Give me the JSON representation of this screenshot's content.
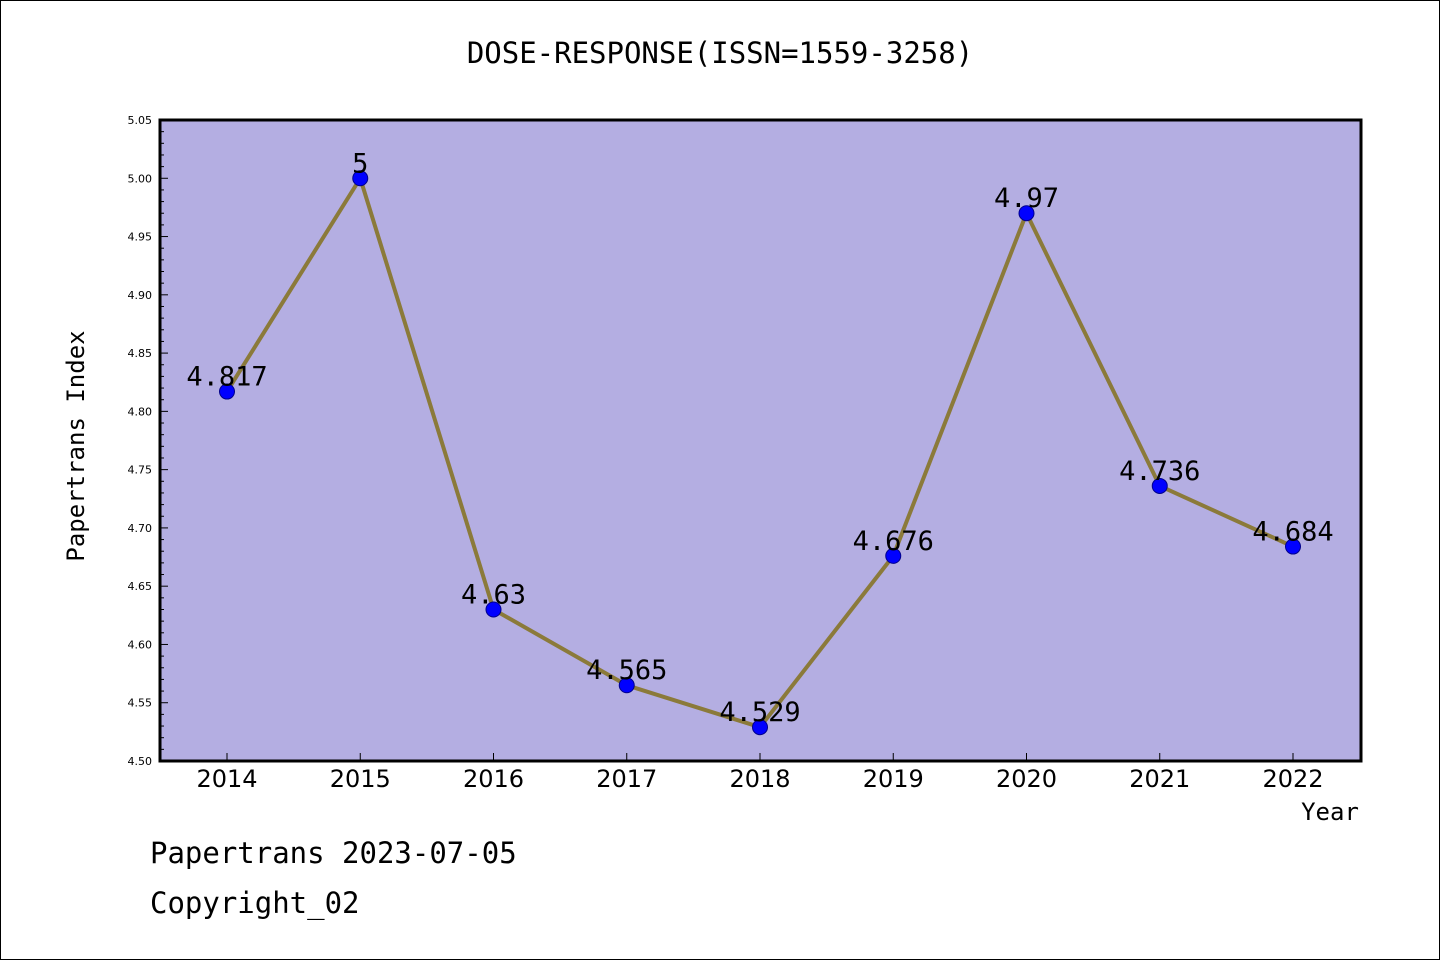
{
  "chart_data": {
    "type": "line",
    "title": "DOSE-RESPONSE(ISSN=1559-3258)",
    "xlabel": "Year",
    "ylabel": "Papertrans Index",
    "categories": [
      "2014",
      "2015",
      "2016",
      "2017",
      "2018",
      "2019",
      "2020",
      "2021",
      "2022"
    ],
    "series": [
      {
        "values": [
          4.817,
          5,
          4.63,
          4.565,
          4.529,
          4.676,
          4.97,
          4.736,
          4.684
        ],
        "labels": [
          "4.817",
          "5",
          "4.63",
          "4.565",
          "4.529",
          "4.676",
          "4.97",
          "4.736",
          "4.684"
        ]
      }
    ],
    "ylim": [
      4.5,
      5.05
    ],
    "yticks": [
      "4.50",
      "4.55",
      "4.60",
      "4.65",
      "4.70",
      "4.75",
      "4.80",
      "4.85",
      "4.90",
      "4.95",
      "5.00",
      "5.05"
    ],
    "grid": false,
    "colors": {
      "plot_background": "#b4aee2",
      "line": "#8b7a3a",
      "marker": "#0000ff",
      "marker_edge": "#00008b"
    }
  },
  "footer": {
    "date_line": "Papertrans 2023-07-05",
    "copyright_line": "Copyright_02"
  }
}
